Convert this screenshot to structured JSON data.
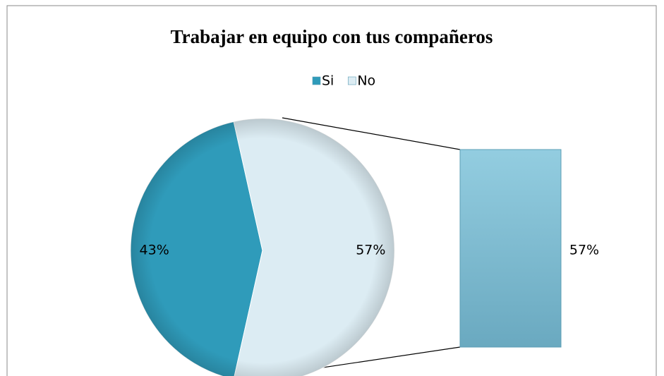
{
  "chart_data": {
    "type": "pie",
    "title": "Trabajar en equipo con tus compañeros",
    "categories": [
      "Si",
      "No"
    ],
    "values": [
      43,
      57
    ],
    "value_labels": [
      "43%",
      "57%"
    ],
    "colors": [
      "#2f9bba",
      "#dcecf3"
    ],
    "bar_color": "#86c3d8",
    "legend": "top"
  }
}
